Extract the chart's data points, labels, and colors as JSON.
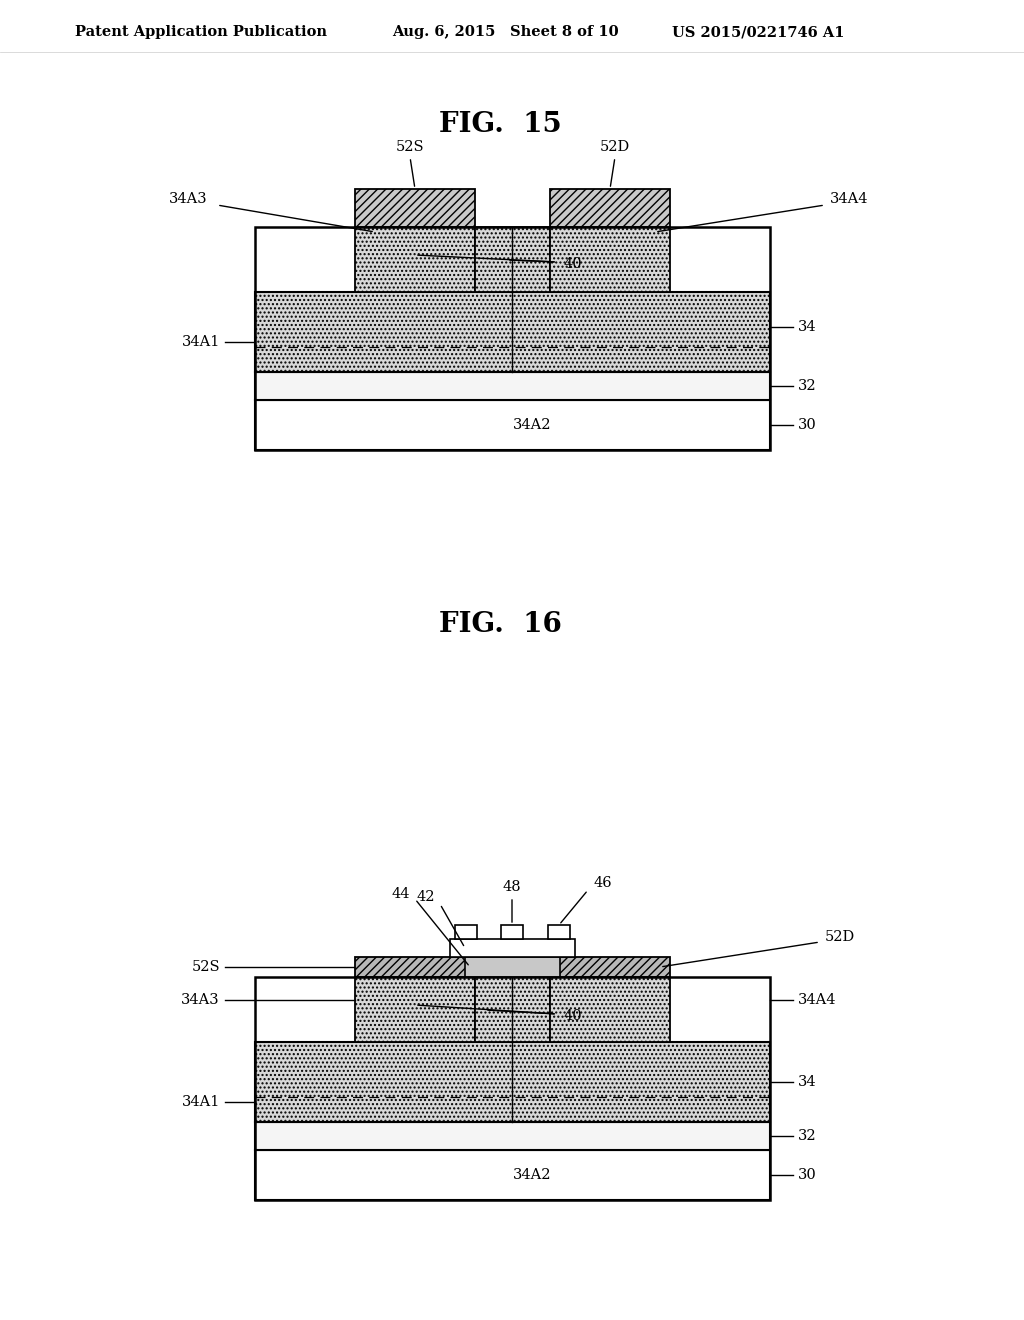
{
  "bg_color": "#ffffff",
  "header_text": "Patent Application Publication",
  "header_date": "Aug. 6, 2015",
  "header_sheet": "Sheet 8 of 10",
  "header_patent": "US 2015/0221746 A1",
  "fig15_title": "FIG.  15",
  "fig16_title": "FIG.  16",
  "fig_title_fontsize": 20,
  "label_fontsize": 10.5,
  "header_fontsize": 10.5,
  "dot_color": "#d8d8d8",
  "hatch_color": "#b0b0b0",
  "buf_color": "#eeeeee",
  "sub_color": "#ffffff"
}
